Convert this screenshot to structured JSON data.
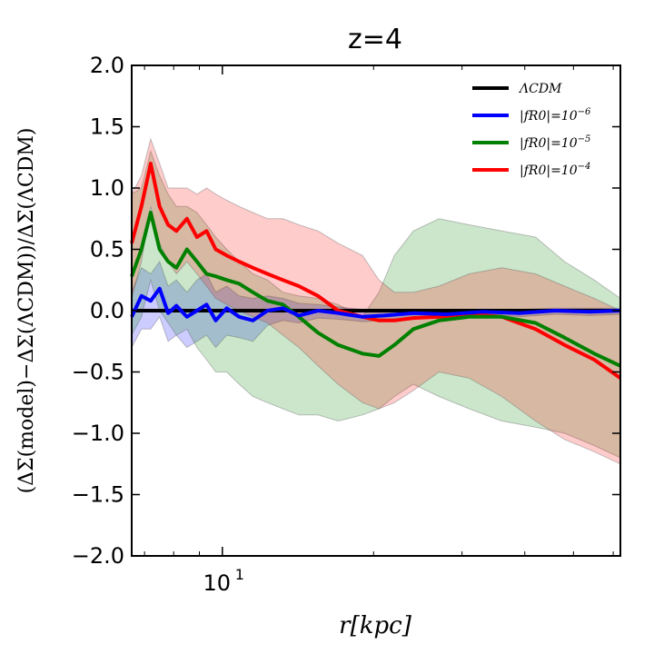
{
  "chart_data": {
    "type": "line",
    "title": "z=4",
    "xlabel": "r[kpc]",
    "ylabel": "(ΔΣ(model)−ΔΣ(ΛCDM))/ΔΣ(ΛCDM)",
    "xscale": "log",
    "xlim": [
      6.6,
      62
    ],
    "ylim": [
      -2.0,
      2.0
    ],
    "x_ticks": [
      10
    ],
    "x_tick_labels": [
      "10"
    ],
    "x_tick_exponent": "1",
    "y_ticks": [
      2.0,
      1.5,
      1.0,
      0.5,
      0.0,
      -0.5,
      -1.0,
      -1.5,
      -2.0
    ],
    "y_tick_labels": [
      "2.0",
      "1.5",
      "1.0",
      "0.5",
      "0.0",
      "−0.5",
      "−1.0",
      "−1.5",
      "−2.0"
    ],
    "grid": false,
    "legend_position": "top-right",
    "series": [
      {
        "name": "ΛCDM",
        "color": "#000000",
        "x": [
          6.6,
          62
        ],
        "y": [
          0.0,
          0.0
        ]
      },
      {
        "name": "|fR0|=10^−6",
        "color": "#0000ff",
        "fill_color": "#0000ff",
        "x": [
          6.6,
          6.9,
          7.2,
          7.5,
          7.8,
          8.1,
          8.5,
          8.9,
          9.3,
          9.7,
          10.2,
          10.8,
          11.5,
          12.3,
          13.2,
          14.2,
          15.5,
          17.0,
          19.0,
          21.0,
          24.0,
          28.0,
          33.0,
          39.0,
          46.0,
          54.0,
          62.0
        ],
        "y": [
          -0.05,
          0.12,
          0.08,
          0.18,
          -0.02,
          0.04,
          -0.05,
          0.0,
          0.05,
          -0.08,
          0.02,
          -0.05,
          -0.08,
          0.0,
          0.02,
          -0.04,
          0.0,
          -0.02,
          -0.05,
          -0.04,
          -0.02,
          -0.03,
          -0.01,
          -0.02,
          0.0,
          -0.01,
          0.0
        ],
        "upper": [
          0.15,
          0.35,
          0.3,
          0.4,
          0.2,
          0.25,
          0.15,
          0.25,
          0.3,
          0.15,
          0.2,
          0.12,
          0.1,
          0.12,
          0.1,
          0.06,
          0.05,
          0.03,
          0.01,
          0.0,
          0.01,
          0.0,
          0.01,
          0.01,
          0.02,
          0.02,
          0.02
        ],
        "lower": [
          -0.3,
          -0.15,
          -0.15,
          -0.05,
          -0.25,
          -0.2,
          -0.3,
          -0.25,
          -0.2,
          -0.3,
          -0.2,
          -0.22,
          -0.25,
          -0.12,
          -0.08,
          -0.1,
          -0.06,
          -0.07,
          -0.09,
          -0.08,
          -0.05,
          -0.06,
          -0.03,
          -0.05,
          -0.03,
          -0.04,
          -0.03
        ]
      },
      {
        "name": "|fR0|=10^−5",
        "color": "#008000",
        "fill_color": "#008000",
        "x": [
          6.6,
          6.9,
          7.2,
          7.5,
          7.8,
          8.1,
          8.5,
          8.9,
          9.3,
          9.7,
          10.2,
          10.8,
          11.5,
          12.3,
          13.2,
          14.2,
          15.5,
          17.0,
          19.0,
          20.5,
          22.0,
          24.0,
          27.0,
          31.0,
          36.0,
          42.0,
          48.0,
          55.0,
          62.0
        ],
        "y": [
          0.28,
          0.5,
          0.8,
          0.5,
          0.4,
          0.35,
          0.5,
          0.4,
          0.3,
          0.28,
          0.25,
          0.22,
          0.15,
          0.08,
          0.05,
          -0.05,
          -0.18,
          -0.28,
          -0.35,
          -0.37,
          -0.28,
          -0.15,
          -0.08,
          -0.05,
          -0.05,
          -0.1,
          -0.22,
          -0.35,
          -0.45
        ],
        "upper": [
          0.95,
          1.0,
          1.3,
          1.1,
          0.95,
          0.85,
          0.85,
          0.8,
          0.7,
          0.6,
          0.5,
          0.4,
          0.3,
          0.25,
          0.15,
          0.12,
          0.1,
          0.05,
          -0.05,
          0.15,
          0.45,
          0.65,
          0.75,
          0.7,
          0.65,
          0.6,
          0.4,
          0.25,
          0.1
        ],
        "lower": [
          -0.2,
          -0.05,
          0.25,
          0.0,
          -0.1,
          -0.2,
          -0.15,
          -0.3,
          -0.4,
          -0.5,
          -0.5,
          -0.6,
          -0.7,
          -0.75,
          -0.8,
          -0.85,
          -0.85,
          -0.9,
          -0.85,
          -0.8,
          -0.7,
          -0.6,
          -0.7,
          -0.8,
          -0.9,
          -0.95,
          -1.0,
          -1.1,
          -1.2
        ]
      },
      {
        "name": "|fR0|=10^−4",
        "color": "#ff0000",
        "fill_color": "#ff0000",
        "x": [
          6.6,
          6.9,
          7.2,
          7.5,
          7.8,
          8.1,
          8.5,
          8.9,
          9.3,
          9.7,
          10.2,
          10.8,
          11.5,
          12.3,
          13.2,
          14.2,
          15.5,
          17.0,
          19.0,
          20.5,
          22.0,
          24.0,
          27.0,
          31.0,
          36.0,
          42.0,
          48.0,
          55.0,
          62.0
        ],
        "y": [
          0.55,
          0.85,
          1.2,
          0.85,
          0.7,
          0.65,
          0.75,
          0.6,
          0.65,
          0.5,
          0.45,
          0.4,
          0.35,
          0.3,
          0.25,
          0.2,
          0.12,
          0.0,
          -0.05,
          -0.08,
          -0.08,
          -0.06,
          -0.05,
          -0.03,
          -0.05,
          -0.15,
          -0.28,
          -0.4,
          -0.55
        ],
        "upper": [
          0.95,
          1.1,
          1.4,
          1.2,
          1.0,
          1.0,
          1.0,
          0.95,
          1.0,
          0.95,
          0.9,
          0.85,
          0.8,
          0.75,
          0.75,
          0.7,
          0.65,
          0.55,
          0.45,
          0.25,
          0.15,
          0.15,
          0.2,
          0.3,
          0.35,
          0.3,
          0.2,
          0.1,
          0.0
        ],
        "lower": [
          0.1,
          0.4,
          0.85,
          0.55,
          0.4,
          0.3,
          0.4,
          0.3,
          0.2,
          0.1,
          0.05,
          0.0,
          -0.05,
          -0.1,
          -0.2,
          -0.3,
          -0.45,
          -0.6,
          -0.75,
          -0.8,
          -0.75,
          -0.65,
          -0.5,
          -0.55,
          -0.7,
          -0.9,
          -1.05,
          -1.15,
          -1.25
        ]
      }
    ]
  }
}
